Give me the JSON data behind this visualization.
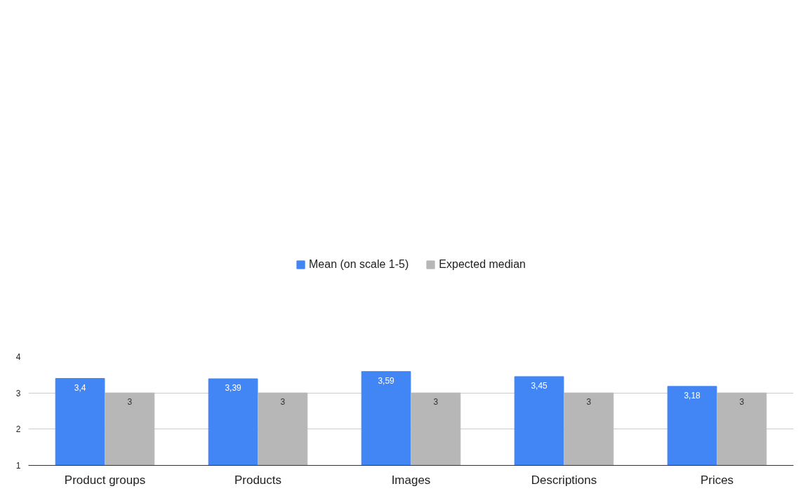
{
  "chart_data": {
    "type": "bar",
    "categories": [
      "Product groups",
      "Products",
      "Images",
      "Descriptions",
      "Prices"
    ],
    "series": [
      {
        "name": "Mean (on scale 1-5)",
        "color": "#4285f4",
        "values": [
          3.4,
          3.39,
          3.59,
          3.45,
          3.18
        ],
        "value_labels": [
          "3,4",
          "3,39",
          "3,59",
          "3,45",
          "3,18"
        ]
      },
      {
        "name": "Expected median",
        "color": "#b7b7b7",
        "values": [
          3,
          3,
          3,
          3,
          3
        ],
        "value_labels": [
          "3",
          "3",
          "3",
          "3",
          "3"
        ]
      }
    ],
    "ylim": [
      1,
      4
    ],
    "yticks": [
      1,
      2,
      3,
      4
    ],
    "grid": "y",
    "legend": "top"
  }
}
